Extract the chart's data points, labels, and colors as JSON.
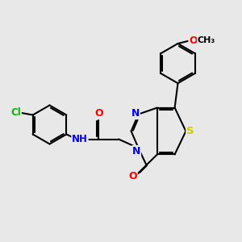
{
  "bg_color": "#e8e8e8",
  "bond_color": "#000000",
  "atom_colors": {
    "N": "#0000ff",
    "O": "#ff0000",
    "S": "#cccc00",
    "Cl": "#00bb00",
    "C": "#000000"
  },
  "bond_width": 1.5,
  "figsize": [
    3.0,
    3.0
  ],
  "dpi": 100
}
